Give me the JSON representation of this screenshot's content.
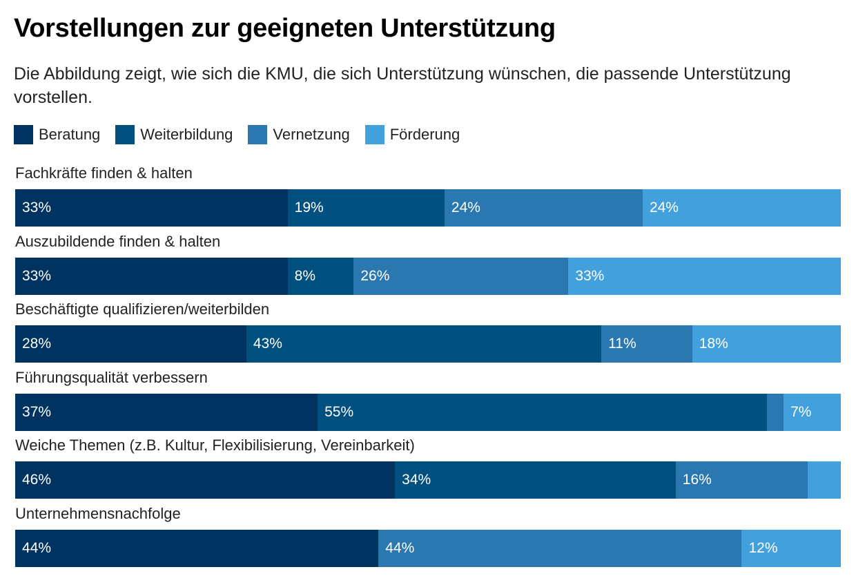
{
  "chart_data": {
    "type": "bar",
    "orientation": "horizontal",
    "stacked": true,
    "normalized": true,
    "title": "Vorstellungen zur geeigneten Unterstützung",
    "subtitle": "Die Abbildung zeigt, wie sich die KMU, die sich Unterstützung wünschen, die passende Unterstützung vorstellen.",
    "legend_position": "top-left",
    "grid": false,
    "categories": [
      "Fachkräfte finden & halten",
      "Auszubildende finden & halten",
      "Beschäftigte qualifizieren/weiterbilden",
      "Führungsqualität verbessern",
      "Weiche Themen (z.B. Kultur, Flexibilisierung, Vereinbarkeit)",
      "Unternehmensnachfolge"
    ],
    "series": [
      {
        "name": "Beratung",
        "color": "#00335f",
        "values": [
          33,
          33,
          28,
          37,
          46,
          44
        ],
        "labels": [
          "33%",
          "33%",
          "28%",
          "37%",
          "46%",
          "44%"
        ]
      },
      {
        "name": "Weiterbildung",
        "color": "#02507f",
        "values": [
          19,
          8,
          43,
          55,
          34,
          0
        ],
        "labels": [
          "19%",
          "8%",
          "43%",
          "55%",
          "34%",
          ""
        ]
      },
      {
        "name": "Vernetzung",
        "color": "#2b77b0",
        "values": [
          24,
          26,
          11,
          2,
          16,
          44
        ],
        "labels": [
          "24%",
          "26%",
          "11%",
          "",
          "16%",
          "44%"
        ]
      },
      {
        "name": "Förderung",
        "color": "#42a0dc",
        "values": [
          24,
          33,
          18,
          7,
          4,
          12
        ],
        "labels": [
          "24%",
          "33%",
          "18%",
          "7%",
          "",
          "12%"
        ]
      }
    ]
  }
}
